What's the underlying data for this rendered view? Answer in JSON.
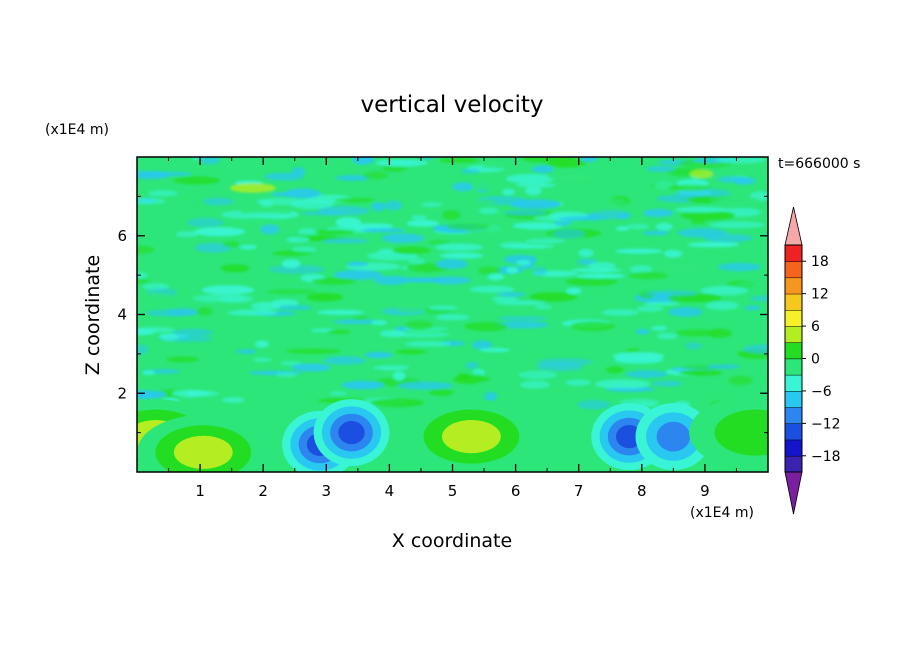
{
  "chart_data": {
    "type": "heatmap",
    "title": "vertical velocity",
    "time_label": "t=666000 s",
    "xlabel": "X coordinate",
    "ylabel": "Z coordinate",
    "x_unit": "(x1E4 m)",
    "y_unit": "(x1E4 m)",
    "xlim": [
      0,
      10
    ],
    "ylim": [
      0,
      8
    ],
    "x_ticks": [
      "1",
      "2",
      "3",
      "4",
      "5",
      "6",
      "7",
      "8",
      "9"
    ],
    "y_ticks": [
      "2",
      "4",
      "6"
    ],
    "colorbar": {
      "levels": [
        -21,
        -18,
        -15,
        -12,
        -9,
        -6,
        -3,
        0,
        3,
        6,
        9,
        12,
        15,
        18,
        21
      ],
      "tick_labels": [
        "18",
        "12",
        "6",
        "0",
        "−6",
        "−12",
        "−18"
      ],
      "tick_values": [
        18,
        12,
        6,
        0,
        -6,
        -12,
        -18
      ],
      "colors": [
        "#7a1fa0",
        "#3b22b0",
        "#1414cc",
        "#1a4fe0",
        "#2d86f0",
        "#28c8f0",
        "#39f5d5",
        "#2de67a",
        "#22dd22",
        "#b4ee22",
        "#f5f028",
        "#f5c81e",
        "#f5961e",
        "#f5641e",
        "#ee2222",
        "#f5a8a8"
      ]
    },
    "features": [
      {
        "x": 0.3,
        "z": 0.9,
        "value": 10,
        "type": "updraft"
      },
      {
        "x": 1.05,
        "z": 0.5,
        "value": 8,
        "type": "updraft"
      },
      {
        "x": 2.9,
        "z": 0.7,
        "value": -12,
        "type": "downdraft"
      },
      {
        "x": 3.4,
        "z": 1.0,
        "value": -13,
        "type": "downdraft"
      },
      {
        "x": 5.3,
        "z": 0.9,
        "value": 8,
        "type": "updraft"
      },
      {
        "x": 7.8,
        "z": 0.9,
        "value": -11,
        "type": "downdraft"
      },
      {
        "x": 8.5,
        "z": 0.9,
        "value": -10,
        "type": "downdraft"
      },
      {
        "x": 9.8,
        "z": 1.0,
        "value": 6,
        "type": "updraft"
      }
    ]
  }
}
